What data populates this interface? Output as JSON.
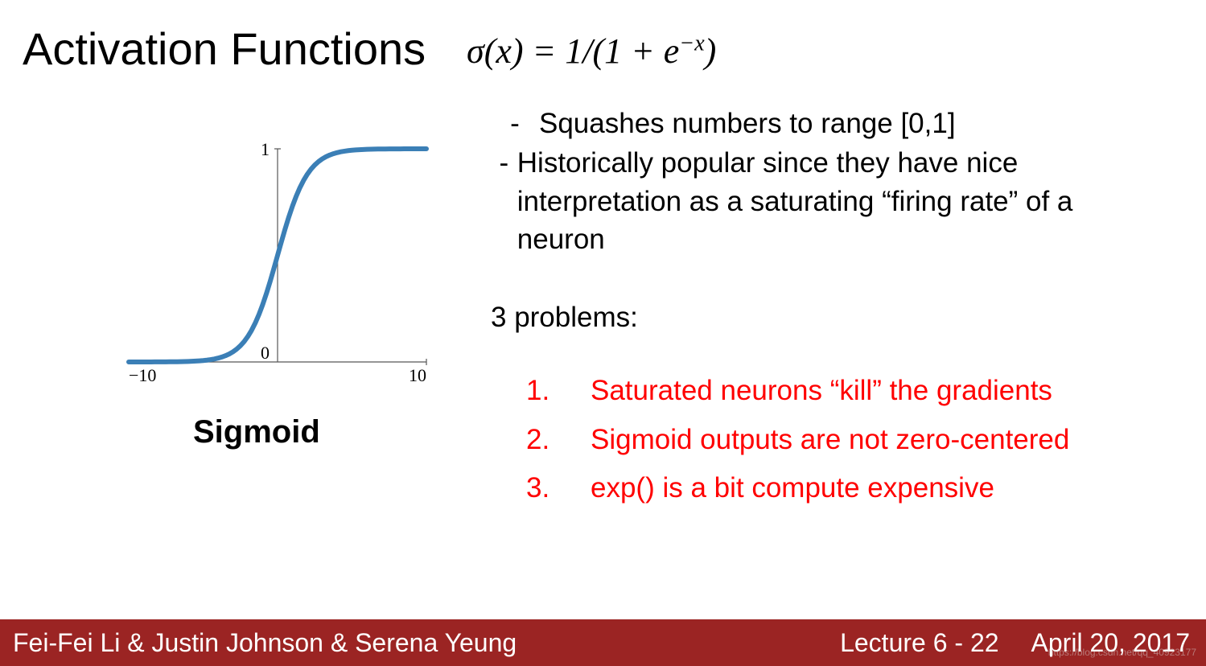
{
  "title": "Activation Functions",
  "formula_html": "σ(x) = 1/(1 + e<sup>−x</sup>)",
  "chart": {
    "type": "line",
    "function_label": "Sigmoid",
    "xlim": [
      -10,
      10
    ],
    "ylim": [
      0,
      1
    ],
    "xtick_values": [
      -10,
      10
    ],
    "xtick_labels": [
      "−10",
      "10"
    ],
    "ytick_values": [
      0,
      1
    ],
    "ytick_labels": [
      "0",
      "1"
    ],
    "axis_color": "#575757",
    "axis_width": 1.2,
    "tick_fontfamily": "Times New Roman, serif",
    "tick_fontsize": 22,
    "background_color": "#ffffff",
    "curve": {
      "color": "#3b7fb6",
      "width": 6,
      "n_points": 80
    }
  },
  "bullets": [
    "Squashes numbers to range [0,1]",
    "Historically popular since they have nice interpretation as a saturating “firing rate” of a neuron"
  ],
  "problems_heading": "3 problems:",
  "problems_color": "#ff0000",
  "problems": [
    "Saturated neurons “kill” the gradients",
    "Sigmoid outputs are not zero-centered",
    "exp() is a bit compute expensive"
  ],
  "footer": {
    "background": "#9b2423",
    "authors": "Fei-Fei Li & Justin Johnson & Serena Yeung",
    "lecture": "Lecture 6 - 22",
    "date": "April 20, 2017"
  },
  "watermark": "https://blog.csdn.net/qq_40923177"
}
